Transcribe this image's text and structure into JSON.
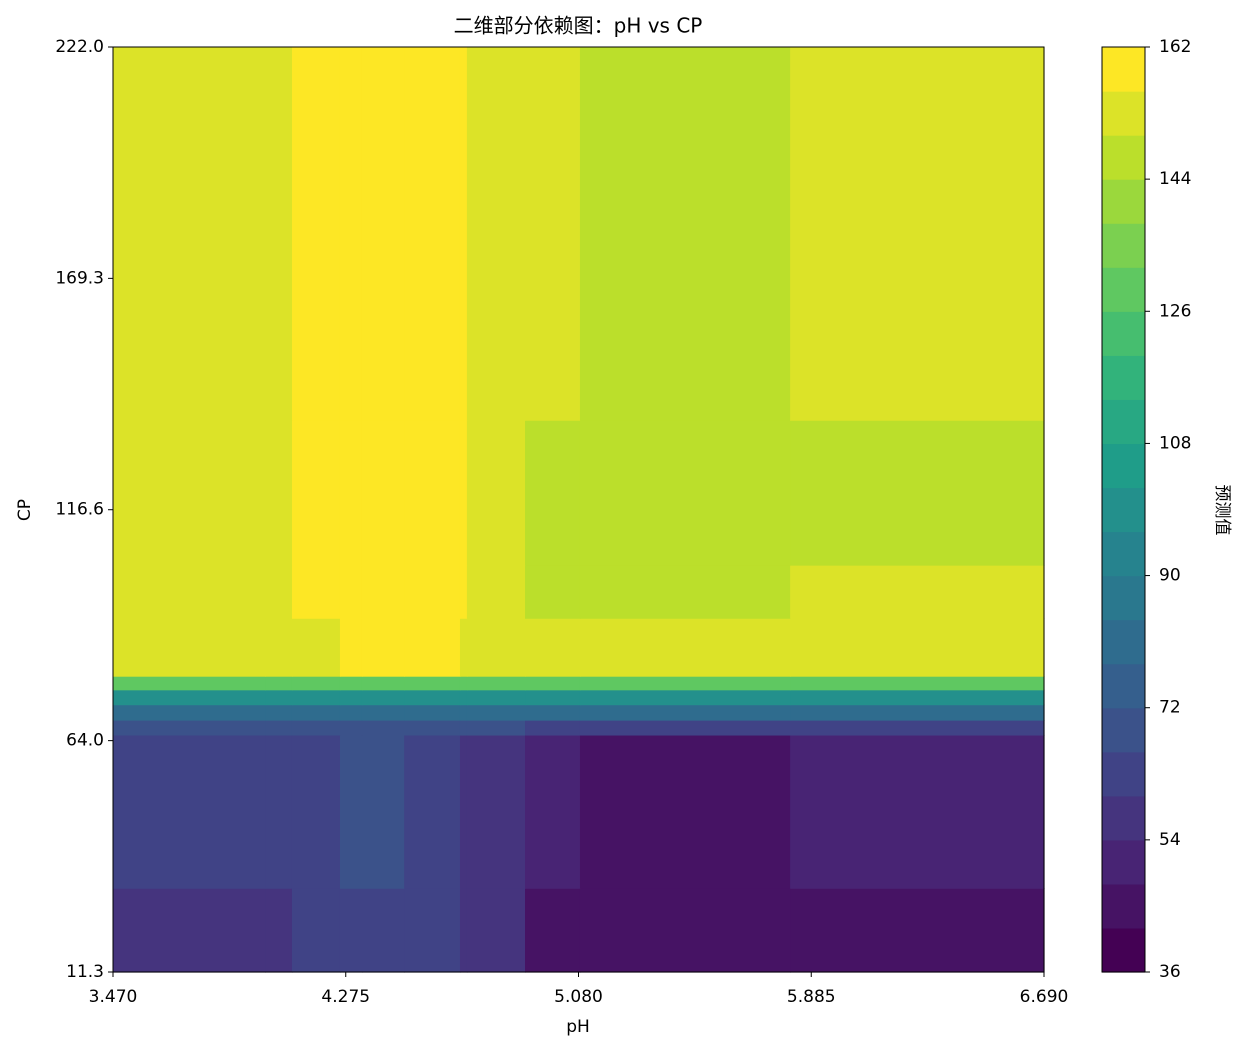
{
  "chart_data": {
    "type": "contour",
    "title": "二维部分依赖图：pH vs CP",
    "x_label": "pH",
    "y_label": "CP",
    "colorbar_label": "预测值",
    "colormap": "viridis",
    "x_edges": [
      3.47,
      3.996,
      4.089,
      4.255,
      4.331,
      4.477,
      4.67,
      4.694,
      4.895,
      5.085,
      5.812,
      6.69
    ],
    "y_edges": [
      11.3,
      30.4,
      65.3,
      68.7,
      72.2,
      75.6,
      78.7,
      91.9,
      104.0,
      137.0,
      222.0
    ],
    "z": [
      [
        57,
        57,
        63,
        63,
        63,
        63,
        57,
        57,
        42,
        42,
        42
      ],
      [
        60,
        63,
        63,
        66,
        69,
        63,
        57,
        57,
        48,
        42,
        48
      ],
      [
        68,
        68,
        68,
        68,
        68,
        68,
        68,
        66,
        62,
        62,
        62
      ],
      [
        80,
        80,
        80,
        80,
        80,
        80,
        80,
        80,
        80,
        80,
        80
      ],
      [
        100,
        100,
        100,
        100,
        100,
        100,
        100,
        100,
        100,
        100,
        100
      ],
      [
        130,
        130,
        130,
        130,
        130,
        130,
        130,
        130,
        130,
        130,
        130
      ],
      [
        155,
        155,
        155,
        160,
        160,
        160,
        155,
        155,
        150,
        150,
        150
      ],
      [
        150,
        150,
        156,
        156,
        156,
        156,
        156,
        150,
        144,
        144,
        150
      ],
      [
        150,
        150,
        156,
        156,
        156,
        156,
        156,
        150,
        144,
        144,
        144
      ],
      [
        150,
        150,
        156,
        156,
        156,
        156,
        156,
        150,
        150,
        144,
        150
      ]
    ],
    "xlim": [
      3.47,
      6.69
    ],
    "xticks": [
      {
        "value": 3.47,
        "label": "3.470"
      },
      {
        "value": 4.275,
        "label": "4.275"
      },
      {
        "value": 5.08,
        "label": "5.080"
      },
      {
        "value": 5.885,
        "label": "5.885"
      },
      {
        "value": 6.69,
        "label": "6.690"
      }
    ],
    "ylim": [
      11.3,
      222.0
    ],
    "yticks": [
      11.3,
      {
        "value": 64,
        "label": "64.0"
      },
      116.6,
      169.3,
      {
        "value": 222,
        "label": "222.0"
      }
    ],
    "levels": [
      36,
      42,
      48,
      54,
      60,
      66,
      72,
      78,
      84,
      90,
      96,
      102,
      108,
      114,
      120,
      126,
      132,
      138,
      144,
      150,
      156,
      162
    ],
    "colorbar_ticks": [
      36,
      54,
      72,
      90,
      108,
      126,
      144,
      162
    ]
  }
}
